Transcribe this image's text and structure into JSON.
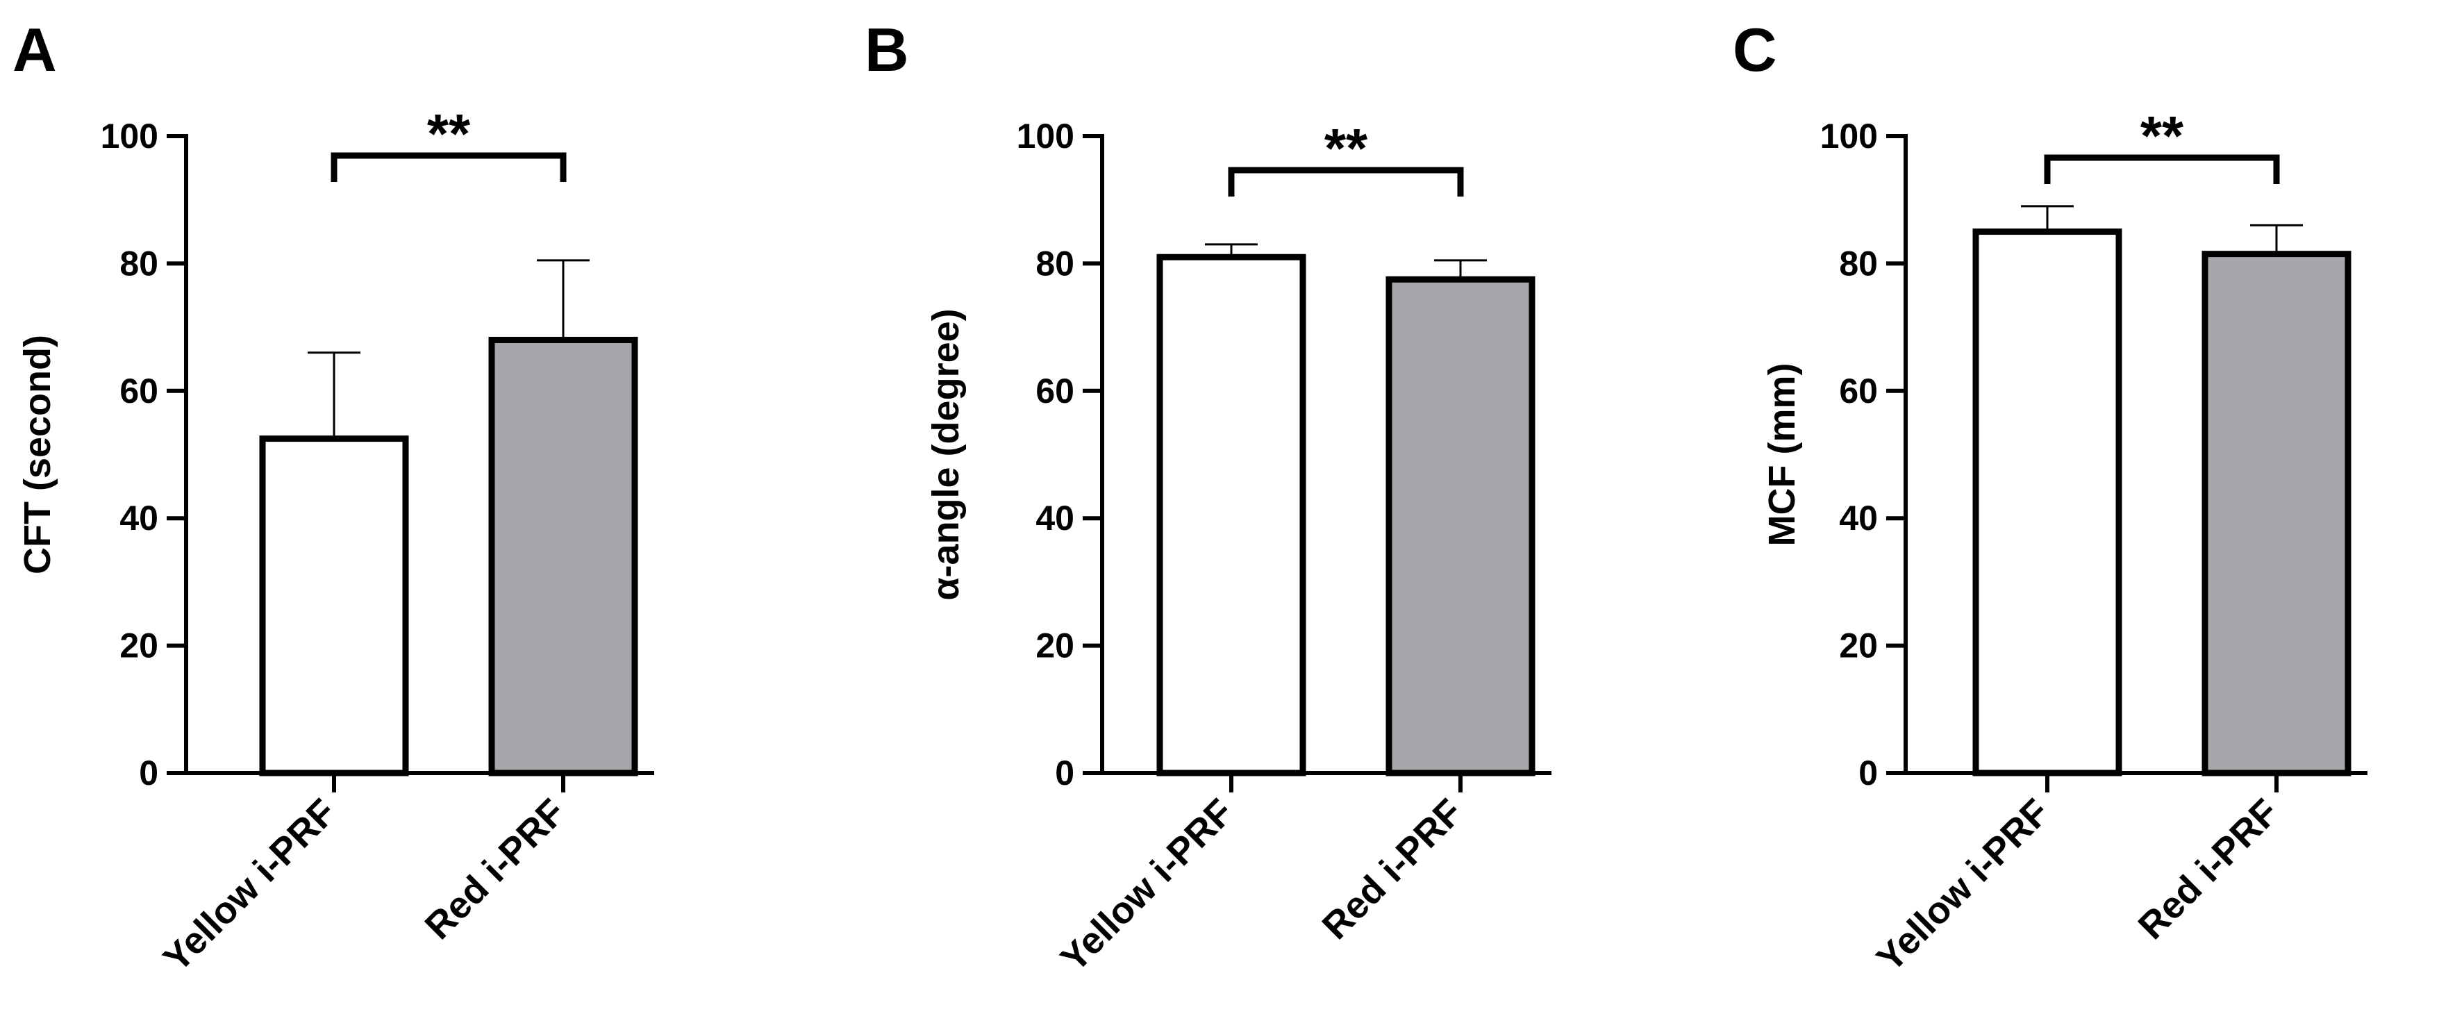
{
  "chart_data": [
    {
      "type": "bar",
      "panel_label": "A",
      "categories": [
        "Yellow i-PRF",
        "Red i-PRF"
      ],
      "values": [
        52.5,
        68
      ],
      "errors": [
        13.5,
        12.5
      ],
      "ylabel": "CFT (second)",
      "ylim": [
        0,
        100
      ],
      "yticks": [
        "0",
        "20",
        "40",
        "60",
        "80",
        "100"
      ],
      "bar_colors": [
        "#ffffff",
        "#a7a6ab"
      ],
      "significance": "**"
    },
    {
      "type": "bar",
      "panel_label": "B",
      "categories": [
        "Yellow i-PRF",
        "Red i-PRF"
      ],
      "values": [
        81,
        77.5
      ],
      "errors": [
        2,
        3
      ],
      "ylabel": "α-angle (degree)",
      "ylim": [
        0,
        100
      ],
      "yticks": [
        "0",
        "20",
        "40",
        "60",
        "80",
        "100"
      ],
      "bar_colors": [
        "#ffffff",
        "#a7a6ab"
      ],
      "significance": "**"
    },
    {
      "type": "bar",
      "panel_label": "C",
      "categories": [
        "Yellow i-PRF",
        "Red i-PRF"
      ],
      "values": [
        85,
        81.5
      ],
      "errors": [
        4,
        4.5
      ],
      "ylabel": "MCF (mm)",
      "ylim": [
        0,
        100
      ],
      "yticks": [
        "0",
        "20",
        "40",
        "60",
        "80",
        "100"
      ],
      "bar_colors": [
        "#ffffff",
        "#a7a6ab"
      ],
      "significance": "**"
    }
  ]
}
